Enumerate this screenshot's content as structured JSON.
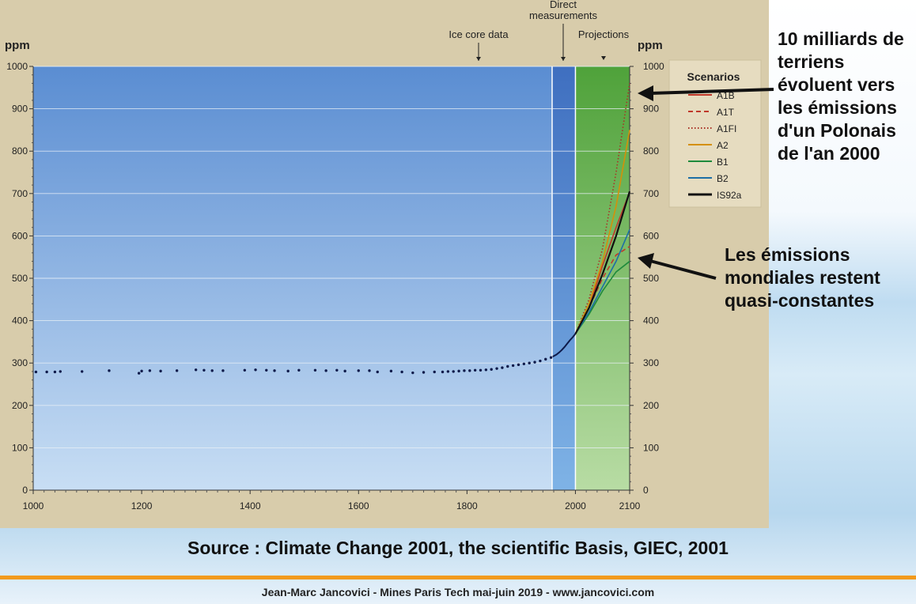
{
  "annotations": {
    "right_top": "10 milliards de terriens évoluent vers les émissions d'un Polonais de l'an 2000",
    "right_bottom": "Les émissions mondiales restent quasi-constantes"
  },
  "source": "Source : Climate Change 2001, the scientific Basis, GIEC, 2001",
  "footer": "Jean-Marc Jancovici - Mines Paris Tech mai-juin 2019 - www.jancovici.com",
  "colors": {
    "footer_rule": "#f29a1d",
    "panel": "#d8ccab"
  },
  "chart_data": {
    "type": "line",
    "title": "",
    "xlabel": "",
    "ylabel": "ppm",
    "y2label": "ppm",
    "xlim": [
      1000,
      2100
    ],
    "ylim": [
      0,
      1000
    ],
    "xticks": [
      1000,
      1200,
      1400,
      1600,
      1800,
      2000,
      2100
    ],
    "yticks": [
      0,
      100,
      200,
      300,
      400,
      500,
      600,
      700,
      800,
      900,
      1000
    ],
    "grid": true,
    "legend_title": "Scenarios",
    "legend_position": "top-right",
    "periods": [
      {
        "label": "Ice core data",
        "from": 1000,
        "to": 1957,
        "color": "#6a9bd8"
      },
      {
        "label": "Direct measurements",
        "from": 1957,
        "to": 2000,
        "color": "#4a7fcc"
      },
      {
        "label": "Projections",
        "from": 2000,
        "to": 2100,
        "color": "#79b860"
      }
    ],
    "ice_core": {
      "x": [
        1005,
        1025,
        1040,
        1050,
        1090,
        1140,
        1195,
        1200,
        1215,
        1235,
        1265,
        1300,
        1315,
        1330,
        1350,
        1390,
        1410,
        1430,
        1445,
        1470,
        1490,
        1520,
        1540,
        1560,
        1575,
        1600,
        1620,
        1635,
        1660,
        1680,
        1700,
        1720,
        1740,
        1755,
        1765,
        1775,
        1785,
        1795,
        1805,
        1815,
        1825,
        1835,
        1845,
        1855,
        1865,
        1875,
        1885,
        1895,
        1905,
        1915,
        1925,
        1935,
        1945,
        1955
      ],
      "y": [
        279,
        279,
        279,
        280,
        280,
        282,
        276,
        281,
        282,
        281,
        282,
        284,
        283,
        282,
        282,
        283,
        284,
        283,
        282,
        281,
        283,
        283,
        282,
        283,
        281,
        282,
        282,
        279,
        281,
        279,
        277,
        278,
        279,
        279,
        280,
        280,
        281,
        282,
        282,
        283,
        283,
        284,
        285,
        287,
        289,
        292,
        294,
        296,
        298,
        300,
        302,
        305,
        309,
        313
      ]
    },
    "measured": {
      "x": [
        1958,
        1965,
        1970,
        1975,
        1980,
        1985,
        1990,
        1995,
        2000
      ],
      "y": [
        315,
        320,
        325,
        331,
        338,
        346,
        354,
        361,
        369
      ]
    },
    "series": [
      {
        "name": "A1B",
        "color": "#c0392b",
        "dash": "",
        "x": [
          2000,
          2025,
          2050,
          2075,
          2100
        ],
        "y": [
          369,
          430,
          530,
          620,
          703
        ]
      },
      {
        "name": "A1T",
        "color": "#c0392b",
        "dash": "6,4",
        "x": [
          2000,
          2025,
          2050,
          2075,
          2100
        ],
        "y": [
          369,
          430,
          500,
          555,
          575
        ]
      },
      {
        "name": "A1FI",
        "color": "#a93226",
        "dash": "1.5,2.5",
        "x": [
          2000,
          2025,
          2050,
          2075,
          2100
        ],
        "y": [
          369,
          450,
          570,
          750,
          960
        ]
      },
      {
        "name": "A2",
        "color": "#d4900a",
        "dash": "",
        "x": [
          2000,
          2025,
          2050,
          2075,
          2100
        ],
        "y": [
          369,
          440,
          540,
          670,
          850
        ]
      },
      {
        "name": "B1",
        "color": "#1e8a3c",
        "dash": "",
        "x": [
          2000,
          2025,
          2050,
          2075,
          2100
        ],
        "y": [
          369,
          415,
          470,
          515,
          540
        ]
      },
      {
        "name": "B2",
        "color": "#1d6fa5",
        "dash": "",
        "x": [
          2000,
          2025,
          2050,
          2075,
          2100
        ],
        "y": [
          369,
          420,
          480,
          540,
          615
        ]
      },
      {
        "name": "IS92a",
        "color": "#111111",
        "dash": "",
        "x": [
          2000,
          2025,
          2050,
          2075,
          2100
        ],
        "y": [
          369,
          430,
          510,
          600,
          705
        ]
      }
    ]
  }
}
